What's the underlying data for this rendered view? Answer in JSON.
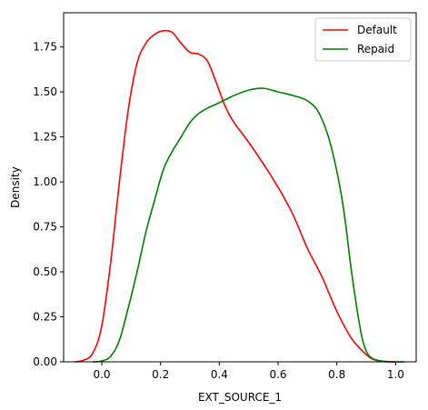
{
  "chart_data": {
    "type": "line",
    "title": "",
    "xlabel": "EXT_SOURCE_1",
    "ylabel": "Density",
    "xlim": [
      -0.13,
      1.07
    ],
    "ylim": [
      0,
      1.94
    ],
    "xticks": [
      0.0,
      0.2,
      0.4,
      0.6,
      0.8,
      1.0
    ],
    "xtick_labels": [
      "0.0",
      "0.2",
      "0.4",
      "0.6",
      "0.8",
      "1.0"
    ],
    "yticks": [
      0.0,
      0.25,
      0.5,
      0.75,
      1.0,
      1.25,
      1.5,
      1.75
    ],
    "ytick_labels": [
      "0.00",
      "0.25",
      "0.50",
      "0.75",
      "1.00",
      "1.25",
      "1.50",
      "1.75"
    ],
    "grid": false,
    "legend_position": "top-right",
    "series": [
      {
        "name": "Default",
        "color": "#ff0000",
        "x": [
          -0.09,
          -0.06,
          -0.03,
          0.0,
          0.03,
          0.06,
          0.09,
          0.12,
          0.15,
          0.18,
          0.21,
          0.24,
          0.27,
          0.3,
          0.33,
          0.36,
          0.39,
          0.42,
          0.45,
          0.5,
          0.55,
          0.6,
          0.65,
          0.7,
          0.75,
          0.8,
          0.85,
          0.9,
          0.93,
          0.97,
          1.0
        ],
        "y": [
          0.0,
          0.01,
          0.05,
          0.2,
          0.55,
          1.0,
          1.4,
          1.66,
          1.77,
          1.82,
          1.84,
          1.83,
          1.77,
          1.72,
          1.71,
          1.67,
          1.55,
          1.42,
          1.33,
          1.22,
          1.1,
          0.97,
          0.82,
          0.63,
          0.47,
          0.28,
          0.13,
          0.04,
          0.01,
          0.0,
          0.0
        ]
      },
      {
        "name": "Repaid",
        "color": "#008000",
        "x": [
          -0.03,
          0.0,
          0.03,
          0.06,
          0.09,
          0.12,
          0.15,
          0.18,
          0.21,
          0.24,
          0.27,
          0.3,
          0.33,
          0.36,
          0.4,
          0.45,
          0.5,
          0.55,
          0.6,
          0.65,
          0.7,
          0.74,
          0.78,
          0.82,
          0.85,
          0.88,
          0.9,
          0.92,
          0.95,
          1.0,
          1.03
        ],
        "y": [
          0.0,
          0.005,
          0.03,
          0.12,
          0.3,
          0.5,
          0.72,
          0.9,
          1.07,
          1.17,
          1.25,
          1.33,
          1.38,
          1.41,
          1.44,
          1.48,
          1.51,
          1.52,
          1.5,
          1.48,
          1.45,
          1.38,
          1.2,
          0.88,
          0.5,
          0.18,
          0.06,
          0.02,
          0.005,
          0.0,
          0.0
        ]
      }
    ]
  }
}
